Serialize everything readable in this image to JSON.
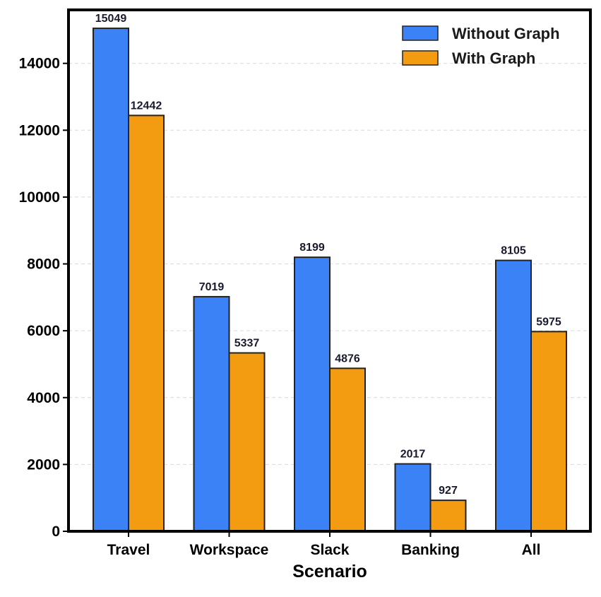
{
  "chart_data": {
    "type": "bar",
    "title": "",
    "xlabel": "Scenario",
    "ylabel": "",
    "categories": [
      "Travel",
      "Workspace",
      "Slack",
      "Banking",
      "All"
    ],
    "series": [
      {
        "name": "Without Graph",
        "color": "#3b82f6",
        "values": [
          15049,
          7019,
          8199,
          2017,
          8105
        ]
      },
      {
        "name": "With Graph",
        "color": "#f39c12",
        "values": [
          12442,
          5337,
          4876,
          927,
          5975
        ]
      }
    ],
    "ylim": [
      0,
      15600
    ],
    "yticks": [
      0,
      2000,
      4000,
      6000,
      8000,
      10000,
      12000,
      14000
    ],
    "grid": true,
    "legend_position": "top-right",
    "data_labels": true
  }
}
